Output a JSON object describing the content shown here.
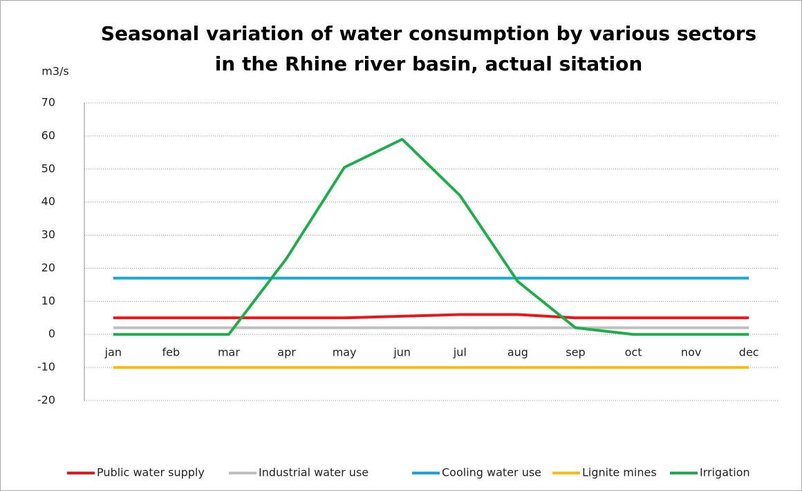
{
  "chart_data": {
    "type": "line",
    "title": [
      "Seasonal variation of water consumption by various sectors",
      "in the Rhine river basin, actual sitation"
    ],
    "y_label": "m3/s",
    "categories": [
      "jan",
      "feb",
      "mar",
      "apr",
      "may",
      "jun",
      "jul",
      "aug",
      "sep",
      "oct",
      "nov",
      "dec"
    ],
    "series": [
      {
        "name": "Public water supply",
        "color": "#e8151b",
        "values": [
          5,
          5,
          5,
          5,
          5,
          5.5,
          6,
          6,
          5,
          5,
          5,
          5
        ]
      },
      {
        "name": "Industrial water use",
        "color": "#bfbfbf",
        "values": [
          2,
          2,
          2,
          2,
          2,
          2,
          2,
          2,
          2,
          2,
          2,
          2
        ]
      },
      {
        "name": "Cooling water use",
        "color": "#14a8e0",
        "values": [
          17,
          17,
          17,
          17,
          17,
          17,
          17,
          17,
          17,
          17,
          17,
          17
        ]
      },
      {
        "name": "Lignite mines",
        "color": "#fbbc0f",
        "values": [
          -10,
          -10,
          -10,
          -10,
          -10,
          -10,
          -10,
          -10,
          -10,
          -10,
          -10,
          -10
        ]
      },
      {
        "name": "Irrigation",
        "color": "#1fad4b",
        "values": [
          0,
          0,
          0,
          23,
          50.5,
          59,
          42,
          16,
          2,
          0,
          0,
          0
        ]
      }
    ],
    "ylim": [
      -20,
      70
    ],
    "yticks": [
      -20,
      -10,
      0,
      10,
      20,
      30,
      40,
      50,
      60,
      70
    ],
    "grid": true,
    "legend": "bottom"
  }
}
